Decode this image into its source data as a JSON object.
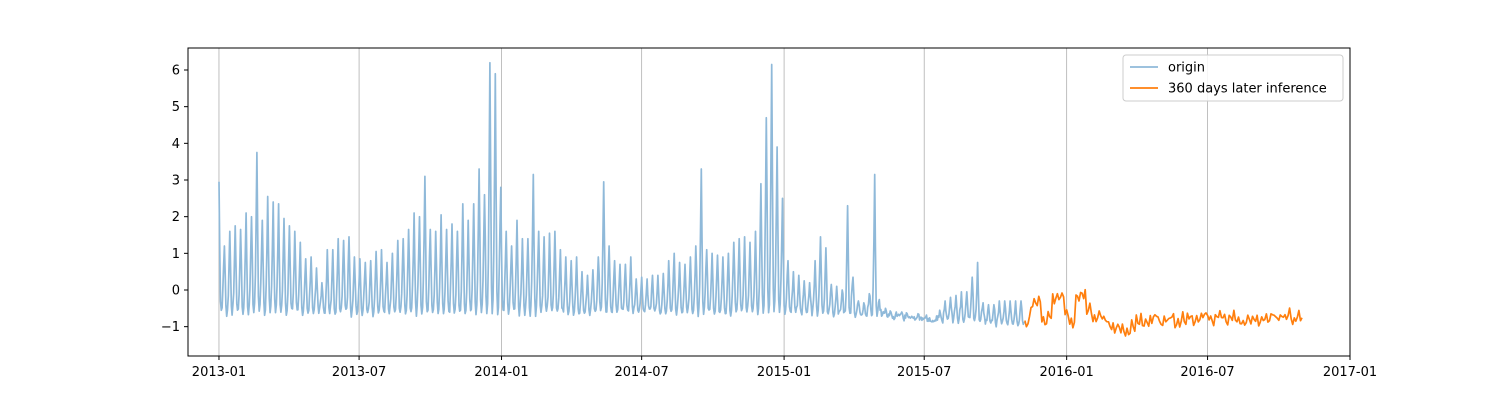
{
  "chart_data": {
    "type": "line",
    "title": "",
    "xlabel": "",
    "ylabel": "",
    "xlim": [
      "2012-11-22",
      "2017-01-01"
    ],
    "ylim": [
      -1.8,
      6.6
    ],
    "grid": {
      "x": true,
      "y": false
    },
    "legend_position": "upper right",
    "x_ticks": [
      "2013-01",
      "2013-07",
      "2014-01",
      "2014-07",
      "2015-01",
      "2015-07",
      "2016-01",
      "2016-07",
      "2017-01"
    ],
    "y_ticks": [
      "−1",
      "0",
      "1",
      "2",
      "3",
      "4",
      "5",
      "6"
    ],
    "y_tick_values": [
      -1,
      0,
      1,
      2,
      3,
      4,
      5,
      6
    ],
    "series": [
      {
        "name": "origin",
        "color": "#8fb9d9",
        "start_date": "2013-01-01",
        "end_date": "2015-11-07",
        "peaks": [
          [
            "2013-01-01",
            2.95
          ],
          [
            "2013-01-08",
            1.2
          ],
          [
            "2013-01-15",
            1.6
          ],
          [
            "2013-01-22",
            1.75
          ],
          [
            "2013-01-29",
            1.65
          ],
          [
            "2013-02-05",
            2.1
          ],
          [
            "2013-02-12",
            2.0
          ],
          [
            "2013-02-19",
            3.75
          ],
          [
            "2013-02-26",
            1.9
          ],
          [
            "2013-03-05",
            2.55
          ],
          [
            "2013-03-12",
            2.4
          ],
          [
            "2013-03-19",
            2.35
          ],
          [
            "2013-03-26",
            1.95
          ],
          [
            "2013-04-02",
            1.75
          ],
          [
            "2013-04-09",
            1.6
          ],
          [
            "2013-04-16",
            1.3
          ],
          [
            "2013-04-23",
            0.85
          ],
          [
            "2013-04-30",
            0.9
          ],
          [
            "2013-05-07",
            0.6
          ],
          [
            "2013-05-14",
            0.2
          ],
          [
            "2013-05-21",
            1.1
          ],
          [
            "2013-05-28",
            1.1
          ],
          [
            "2013-06-04",
            1.4
          ],
          [
            "2013-06-11",
            1.35
          ],
          [
            "2013-06-18",
            1.45
          ],
          [
            "2013-06-25",
            0.9
          ],
          [
            "2013-07-02",
            0.85
          ],
          [
            "2013-07-09",
            0.75
          ],
          [
            "2013-07-16",
            0.8
          ],
          [
            "2013-07-23",
            1.05
          ],
          [
            "2013-07-30",
            1.1
          ],
          [
            "2013-08-06",
            0.75
          ],
          [
            "2013-08-13",
            1.0
          ],
          [
            "2013-08-20",
            1.35
          ],
          [
            "2013-08-27",
            1.4
          ],
          [
            "2013-09-03",
            1.65
          ],
          [
            "2013-09-10",
            2.1
          ],
          [
            "2013-09-17",
            2.0
          ],
          [
            "2013-09-24",
            3.1
          ],
          [
            "2013-10-01",
            1.65
          ],
          [
            "2013-10-08",
            1.6
          ],
          [
            "2013-10-15",
            2.05
          ],
          [
            "2013-10-22",
            1.65
          ],
          [
            "2013-10-29",
            1.8
          ],
          [
            "2013-11-05",
            1.6
          ],
          [
            "2013-11-12",
            2.35
          ],
          [
            "2013-11-19",
            1.9
          ],
          [
            "2013-11-26",
            2.35
          ],
          [
            "2013-12-03",
            3.3
          ],
          [
            "2013-12-10",
            2.6
          ],
          [
            "2013-12-17",
            6.2
          ],
          [
            "2013-12-24",
            5.9
          ],
          [
            "2013-12-31",
            2.8
          ],
          [
            "2014-01-07",
            1.6
          ],
          [
            "2014-01-14",
            1.2
          ],
          [
            "2014-01-21",
            1.9
          ],
          [
            "2014-01-28",
            1.4
          ],
          [
            "2014-02-04",
            1.4
          ],
          [
            "2014-02-11",
            3.15
          ],
          [
            "2014-02-18",
            1.6
          ],
          [
            "2014-02-25",
            1.45
          ],
          [
            "2014-03-04",
            1.55
          ],
          [
            "2014-03-11",
            1.6
          ],
          [
            "2014-03-18",
            1.1
          ],
          [
            "2014-03-25",
            0.9
          ],
          [
            "2014-04-01",
            0.8
          ],
          [
            "2014-04-08",
            0.9
          ],
          [
            "2014-04-15",
            0.5
          ],
          [
            "2014-04-22",
            0.4
          ],
          [
            "2014-04-29",
            0.55
          ],
          [
            "2014-05-06",
            0.9
          ],
          [
            "2014-05-13",
            2.95
          ],
          [
            "2014-05-20",
            1.2
          ],
          [
            "2014-05-27",
            0.8
          ],
          [
            "2014-06-03",
            0.7
          ],
          [
            "2014-06-10",
            0.7
          ],
          [
            "2014-06-17",
            0.9
          ],
          [
            "2014-06-24",
            0.3
          ],
          [
            "2014-07-01",
            0.35
          ],
          [
            "2014-07-08",
            0.3
          ],
          [
            "2014-07-15",
            0.4
          ],
          [
            "2014-07-22",
            0.4
          ],
          [
            "2014-07-29",
            0.45
          ],
          [
            "2014-08-05",
            0.8
          ],
          [
            "2014-08-12",
            1.0
          ],
          [
            "2014-08-19",
            0.75
          ],
          [
            "2014-08-26",
            0.7
          ],
          [
            "2014-09-02",
            0.9
          ],
          [
            "2014-09-09",
            1.2
          ],
          [
            "2014-09-16",
            3.3
          ],
          [
            "2014-09-23",
            1.1
          ],
          [
            "2014-09-30",
            1.0
          ],
          [
            "2014-10-07",
            0.95
          ],
          [
            "2014-10-14",
            0.9
          ],
          [
            "2014-10-21",
            1.0
          ],
          [
            "2014-10-28",
            1.3
          ],
          [
            "2014-11-04",
            1.4
          ],
          [
            "2014-11-11",
            1.45
          ],
          [
            "2014-11-18",
            1.3
          ],
          [
            "2014-11-25",
            1.6
          ],
          [
            "2014-12-02",
            2.9
          ],
          [
            "2014-12-09",
            4.7
          ],
          [
            "2014-12-16",
            6.15
          ],
          [
            "2014-12-23",
            3.9
          ],
          [
            "2014-12-30",
            2.5
          ],
          [
            "2015-01-06",
            0.8
          ],
          [
            "2015-01-13",
            0.5
          ],
          [
            "2015-01-20",
            0.4
          ],
          [
            "2015-01-27",
            0.25
          ],
          [
            "2015-02-03",
            0.2
          ],
          [
            "2015-02-10",
            0.8
          ],
          [
            "2015-02-17",
            1.45
          ],
          [
            "2015-02-24",
            1.15
          ],
          [
            "2015-03-03",
            0.15
          ],
          [
            "2015-03-10",
            0.1
          ],
          [
            "2015-03-17",
            0.0
          ],
          [
            "2015-03-24",
            2.3
          ],
          [
            "2015-03-31",
            0.35
          ],
          [
            "2015-04-07",
            -0.3
          ],
          [
            "2015-04-14",
            -0.35
          ],
          [
            "2015-04-21",
            -0.1
          ],
          [
            "2015-04-28",
            3.15
          ],
          [
            "2015-05-05",
            -0.55
          ],
          [
            "2015-05-12",
            -0.5
          ],
          [
            "2015-05-19",
            -0.6
          ],
          [
            "2015-05-26",
            -0.6
          ],
          [
            "2015-06-02",
            -0.6
          ],
          [
            "2015-06-09",
            -0.65
          ],
          [
            "2015-06-16",
            -0.75
          ],
          [
            "2015-06-23",
            -0.65
          ],
          [
            "2015-06-30",
            -0.8
          ],
          [
            "2015-07-07",
            -0.85
          ],
          [
            "2015-07-14",
            -0.85
          ],
          [
            "2015-07-21",
            -0.55
          ],
          [
            "2015-07-28",
            -0.3
          ],
          [
            "2015-08-04",
            -0.2
          ],
          [
            "2015-08-11",
            -0.15
          ],
          [
            "2015-08-18",
            -0.05
          ],
          [
            "2015-08-25",
            -0.05
          ],
          [
            "2015-09-01",
            0.35
          ],
          [
            "2015-09-08",
            0.75
          ],
          [
            "2015-09-15",
            -0.35
          ],
          [
            "2015-09-22",
            -0.4
          ],
          [
            "2015-09-29",
            -0.4
          ],
          [
            "2015-10-06",
            -0.3
          ]
        ]
      },
      {
        "name": "360 days later inference",
        "color": "#ff7f0e",
        "start_date": "2015-11-08",
        "end_date": "2016-11-01",
        "pattern": [
          -0.9,
          -0.35,
          -0.3,
          -0.85,
          -0.75,
          -0.25,
          -0.15,
          -0.7,
          -0.9,
          -0.2,
          -0.1,
          -0.55,
          -0.85,
          -0.7,
          -0.85,
          -0.95,
          -1.05,
          -1.1,
          -1.15,
          -1.0,
          -0.8,
          -1.0,
          -0.85,
          -0.75,
          -0.9,
          -0.85,
          -0.75,
          -0.9,
          -0.8,
          -0.7,
          -0.85,
          -0.8,
          -0.7,
          -0.85,
          -0.75,
          -0.7,
          -0.9,
          -0.75,
          -0.8,
          -0.9,
          -0.8,
          -0.75,
          -0.85,
          -0.8,
          -0.7,
          -0.8,
          -0.75,
          -0.7,
          -0.8,
          -0.75
        ]
      }
    ]
  }
}
